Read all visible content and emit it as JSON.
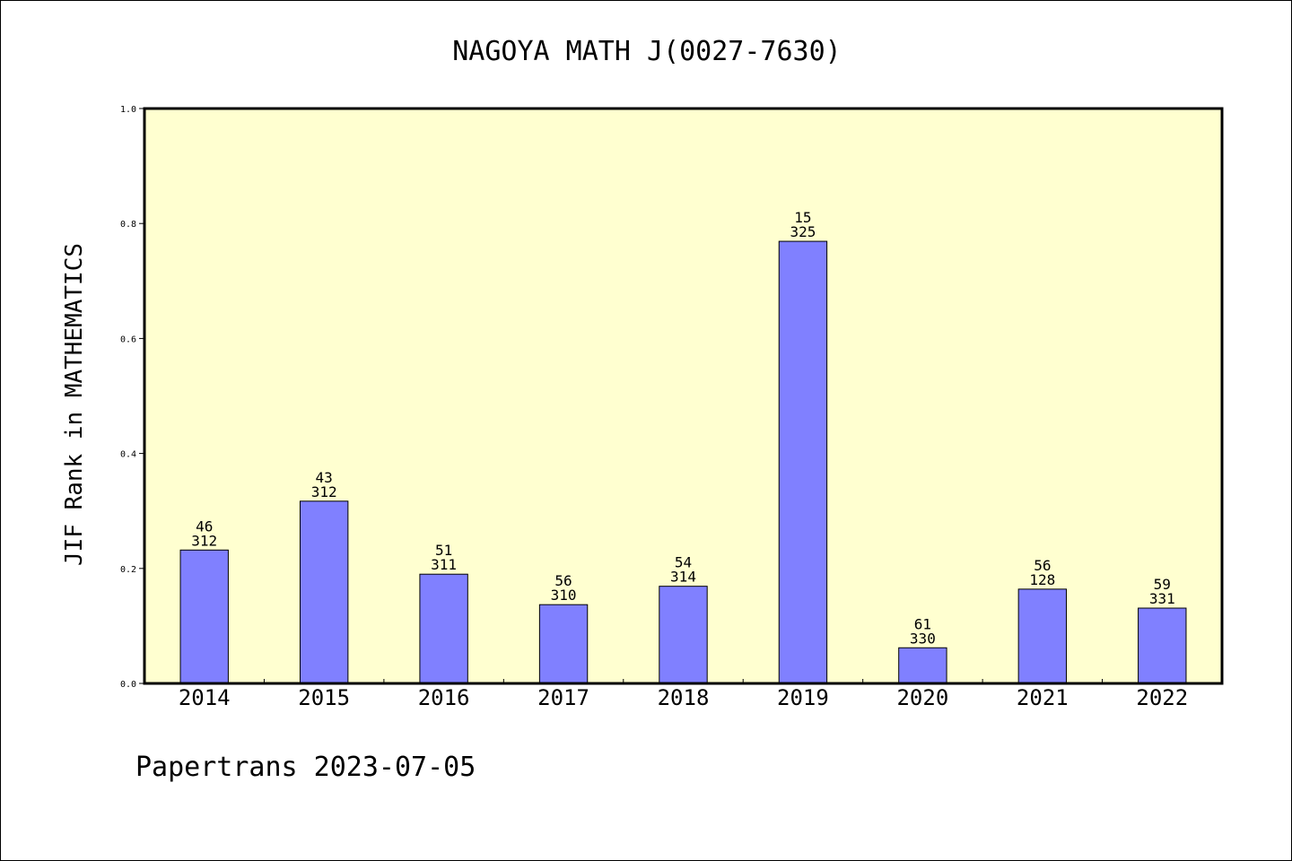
{
  "chart_data": {
    "type": "bar",
    "title": "NAGOYA MATH J(0027-7630)",
    "xlabel": "",
    "ylabel": "JIF Rank in MATHEMATICS",
    "ylim": [
      0,
      1.0
    ],
    "yticks": [
      "0.0",
      "0.2",
      "0.4",
      "0.6",
      "0.8",
      "1.0"
    ],
    "ytick_values": [
      0,
      0.2,
      0.4,
      0.6,
      0.8,
      1.0
    ],
    "categories": [
      "2014",
      "2015",
      "2016",
      "2017",
      "2018",
      "2019",
      "2020",
      "2021",
      "2022"
    ],
    "values": [
      0.232,
      0.317,
      0.19,
      0.137,
      0.169,
      0.769,
      0.062,
      0.164,
      0.131
    ],
    "rank": [
      "46",
      "43",
      "51",
      "56",
      "54",
      "15",
      "61",
      "56",
      "59"
    ],
    "total": [
      "312",
      "312",
      "311",
      "310",
      "314",
      "325",
      "330",
      "128",
      "331"
    ],
    "grid": false,
    "legend": "none",
    "colors": {
      "bar": "#8080ff",
      "plot_background": "#ffffd0",
      "axis": "#000000"
    }
  },
  "footer": "Papertrans 2023-07-05"
}
